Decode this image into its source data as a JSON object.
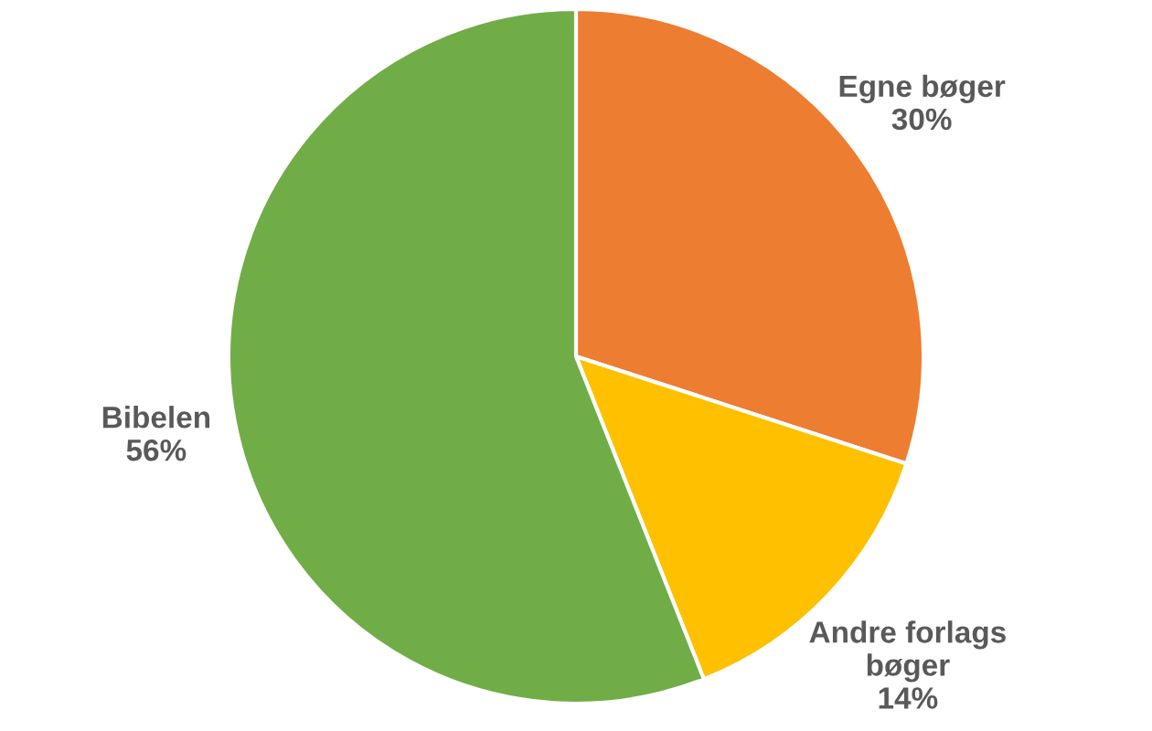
{
  "chart_data": {
    "type": "pie",
    "categories": [
      "Egne bøger",
      "Andre forlags\nbøger",
      "Bibelen"
    ],
    "values": [
      30,
      14,
      56
    ],
    "colors": [
      "#ed7d31",
      "#ffc000",
      "#70ad47"
    ],
    "value_labels": [
      "30%",
      "14%",
      "56%"
    ]
  }
}
